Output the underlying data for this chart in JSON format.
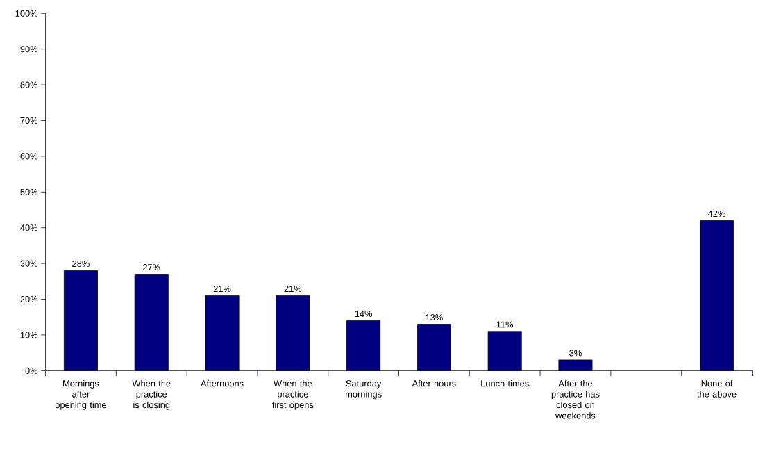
{
  "chart_data": {
    "type": "bar",
    "categories": [
      "Mornings after opening time",
      "When the practice is closing",
      "Afternoons",
      "When the practice first opens",
      "Saturday mornings",
      "After hours",
      "Lunch times",
      "After the practice has closed on weekends",
      null,
      "None of the above"
    ],
    "values": [
      28,
      27,
      21,
      21,
      14,
      13,
      11,
      3,
      null,
      42
    ],
    "value_labels": [
      "28%",
      "27%",
      "21%",
      "21%",
      "14%",
      "13%",
      "11%",
      "3%",
      null,
      "42%"
    ],
    "color": "#000080",
    "ylim": [
      0,
      100
    ],
    "yticks": [
      {
        "value": 0,
        "label": "0%"
      },
      {
        "value": 10,
        "label": "10%"
      },
      {
        "value": 20,
        "label": "20%"
      },
      {
        "value": 30,
        "label": "30%"
      },
      {
        "value": 40,
        "label": "40%"
      },
      {
        "value": 50,
        "label": "50%"
      },
      {
        "value": 60,
        "label": "60%"
      },
      {
        "value": 70,
        "label": "70%"
      },
      {
        "value": 80,
        "label": "80%"
      },
      {
        "value": 90,
        "label": "90%"
      },
      {
        "value": 100,
        "label": "100%"
      }
    ],
    "grid": false
  }
}
